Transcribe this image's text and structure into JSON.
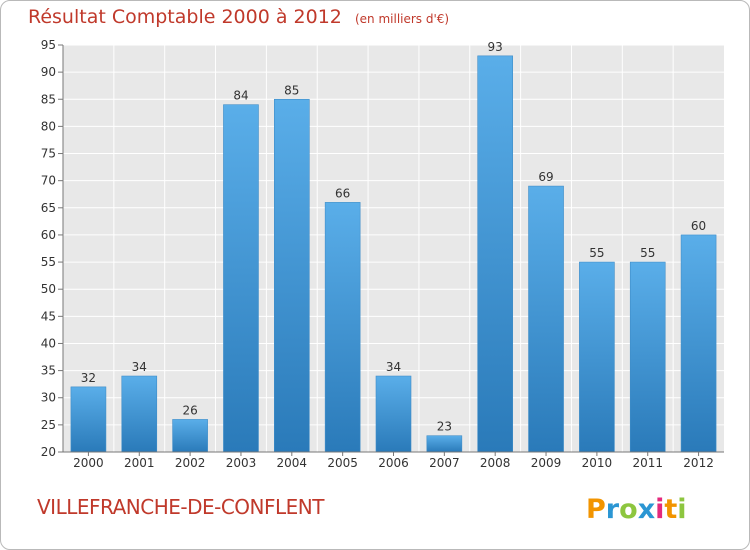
{
  "header": {
    "title": "Résultat Comptable 2000 à 2012",
    "unit": "(en milliers d'€)"
  },
  "footer": {
    "commune": "VILLEFRANCHE-DE-CONFLENT",
    "logo_text": "Proxiti",
    "logo_colors": [
      "#f29400",
      "#2b96d3",
      "#8dc63f",
      "#2b96d3",
      "#e4297d",
      "#f29400",
      "#8dc63f"
    ]
  },
  "colors": {
    "title": "#c0392b",
    "bar_top": "#5aaee9",
    "bar_bottom": "#2a7ab9",
    "plot_background": "#e8e8e8",
    "grid": "#ffffff",
    "axis_text": "#333333"
  },
  "chart_data": {
    "type": "bar",
    "title": "Résultat Comptable 2000 à 2012",
    "subtitle": "(en milliers d'€)",
    "xlabel": "",
    "ylabel": "",
    "categories": [
      "2000",
      "2001",
      "2002",
      "2003",
      "2004",
      "2005",
      "2006",
      "2007",
      "2008",
      "2009",
      "2010",
      "2011",
      "2012"
    ],
    "values": [
      32,
      34,
      26,
      84,
      85,
      66,
      34,
      23,
      93,
      69,
      55,
      55,
      60
    ],
    "ylim": [
      20,
      95
    ],
    "yticks": [
      20,
      25,
      30,
      35,
      40,
      45,
      50,
      55,
      60,
      65,
      70,
      75,
      80,
      85,
      90,
      95
    ],
    "grid": true,
    "legend": "none",
    "data_labels": true
  }
}
